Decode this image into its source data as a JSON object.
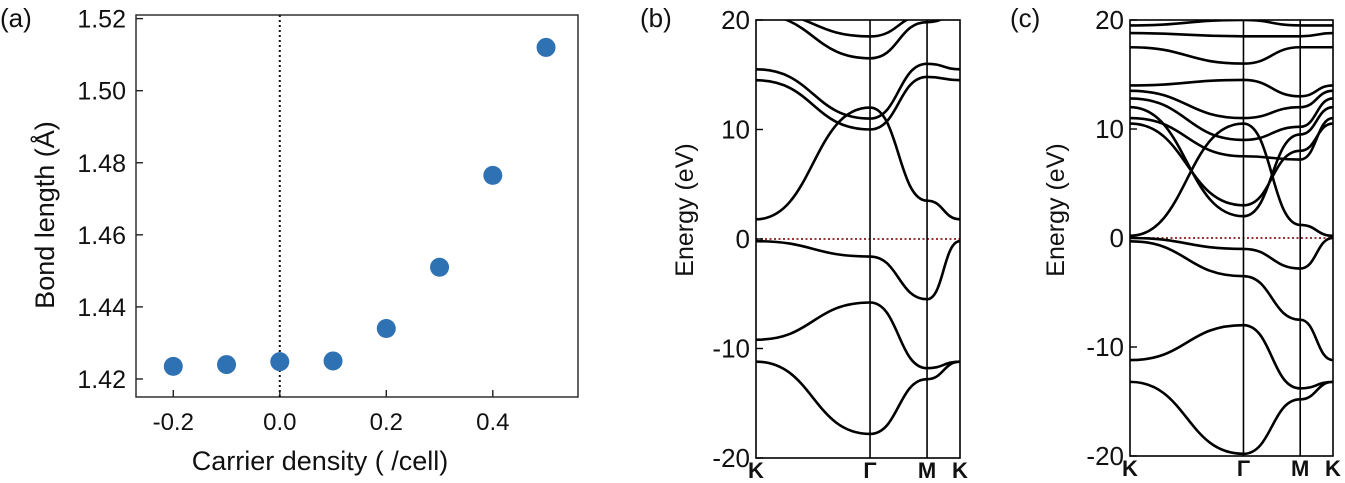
{
  "chart_data": [
    {
      "panel_label": "(a)",
      "type": "scatter",
      "xlabel": "Carrier density ( /cell)",
      "ylabel": "Bond length (Å)",
      "xlim": [
        -0.27,
        0.56
      ],
      "ylim": [
        1.415,
        1.521
      ],
      "x_ticks": [
        -0.2,
        0.0,
        0.2,
        0.4
      ],
      "x_tick_labels": [
        "-0.2",
        "0.0",
        "0.2",
        "0.4"
      ],
      "y_ticks": [
        1.42,
        1.44,
        1.46,
        1.48,
        1.5,
        1.52
      ],
      "y_tick_labels": [
        "1.42",
        "1.44",
        "1.46",
        "1.48",
        "1.50",
        "1.52"
      ],
      "marker_color": "#2f72b3",
      "reference_line_x": 0.0,
      "x": [
        -0.2,
        -0.1,
        0.0,
        0.1,
        0.2,
        0.3,
        0.4,
        0.5
      ],
      "y": [
        1.4235,
        1.424,
        1.4248,
        1.425,
        1.434,
        1.451,
        1.4765,
        1.512
      ]
    },
    {
      "panel_label": "(b)",
      "type": "line",
      "ylabel": "Energy (eV)",
      "ylim": [
        -20,
        20
      ],
      "y_ticks": [
        -20,
        -10,
        0,
        10,
        20
      ],
      "y_tick_labels": [
        "-20",
        "-10",
        "0",
        "10",
        "20"
      ],
      "k_points": [
        "K",
        "Γ",
        "M",
        "K"
      ],
      "k_positions": [
        0,
        1,
        1.5,
        1.789
      ],
      "fermi_level": 0,
      "fermi_color": "#8b1a1a",
      "series": [
        {
          "x": [
            0,
            1,
            1.5,
            1.789
          ],
          "values": [
            -11.2,
            -17.8,
            -12.8,
            -11.2
          ]
        },
        {
          "x": [
            0,
            1,
            1.5,
            1.789
          ],
          "values": [
            -9.2,
            -5.8,
            -11.8,
            -11.2
          ]
        },
        {
          "x": [
            0,
            1,
            1.5,
            1.789
          ],
          "values": [
            -0.2,
            -1.6,
            -5.5,
            -0.2
          ]
        },
        {
          "x": [
            0,
            1,
            1.5,
            1.789
          ],
          "values": [
            1.8,
            12.0,
            3.5,
            1.8
          ]
        },
        {
          "x": [
            0,
            1,
            1.5,
            1.789
          ],
          "values": [
            14.5,
            10.0,
            14.8,
            14.5
          ]
        },
        {
          "x": [
            0,
            1,
            1.5,
            1.789
          ],
          "values": [
            15.5,
            11.0,
            16.0,
            15.5
          ]
        },
        {
          "x": [
            0,
            1,
            1.5,
            1.789
          ],
          "values": [
            20.5,
            16.5,
            19.8,
            20.5
          ]
        },
        {
          "x": [
            0,
            1,
            1.5,
            1.789
          ],
          "values": [
            20.8,
            18.5,
            20.5,
            20.8
          ]
        }
      ]
    },
    {
      "panel_label": "(c)",
      "type": "line",
      "ylabel": "Energy (eV)",
      "ylim": [
        -20,
        20
      ],
      "y_ticks": [
        -20,
        -10,
        0,
        10,
        20
      ],
      "y_tick_labels": [
        "-20",
        "-10",
        "0",
        "10",
        "20"
      ],
      "k_points": [
        "K",
        "Γ",
        "M",
        "K"
      ],
      "k_positions": [
        0,
        1,
        1.5,
        1.789
      ],
      "fermi_level": 0,
      "fermi_color": "#8b1a1a",
      "series": [
        {
          "x": [
            0,
            1,
            1.5,
            1.789
          ],
          "values": [
            -13.2,
            -19.8,
            -14.8,
            -13.2
          ]
        },
        {
          "x": [
            0,
            1,
            1.5,
            1.789
          ],
          "values": [
            -11.2,
            -8.0,
            -13.8,
            -13.2
          ]
        },
        {
          "x": [
            0,
            1,
            1.5,
            1.789
          ],
          "values": [
            -0.3,
            -3.5,
            -7.5,
            -11.2
          ]
        },
        {
          "x": [
            0,
            1,
            1.5,
            1.789
          ],
          "values": [
            0.0,
            -1.0,
            -2.8,
            0.0
          ]
        },
        {
          "x": [
            0,
            1,
            1.5,
            1.789
          ],
          "values": [
            0.2,
            10.5,
            1.2,
            0.2
          ]
        },
        {
          "x": [
            0,
            1,
            1.5,
            1.789
          ],
          "values": [
            10.5,
            3.0,
            8.0,
            10.5
          ]
        },
        {
          "x": [
            0,
            1,
            1.5,
            1.789
          ],
          "values": [
            11.0,
            7.5,
            7.2,
            11.0
          ]
        },
        {
          "x": [
            0,
            1,
            1.5,
            1.789
          ],
          "values": [
            12.0,
            2.0,
            9.5,
            12.0
          ]
        },
        {
          "x": [
            0,
            1,
            1.5,
            1.789
          ],
          "values": [
            12.8,
            9.0,
            10.2,
            12.8
          ]
        },
        {
          "x": [
            0,
            1,
            1.5,
            1.789
          ],
          "values": [
            13.5,
            11.0,
            12.0,
            13.5
          ]
        },
        {
          "x": [
            0,
            1,
            1.5,
            1.789
          ],
          "values": [
            14.0,
            14.5,
            13.0,
            14.0
          ]
        },
        {
          "x": [
            0,
            1,
            1.5,
            1.789
          ],
          "values": [
            17.5,
            16.0,
            17.5,
            17.5
          ]
        },
        {
          "x": [
            0,
            1,
            1.5,
            1.789
          ],
          "values": [
            18.8,
            18.5,
            18.5,
            18.8
          ]
        },
        {
          "x": [
            0,
            1,
            1.5,
            1.789
          ],
          "values": [
            19.5,
            20.0,
            19.5,
            19.5
          ]
        }
      ]
    }
  ]
}
